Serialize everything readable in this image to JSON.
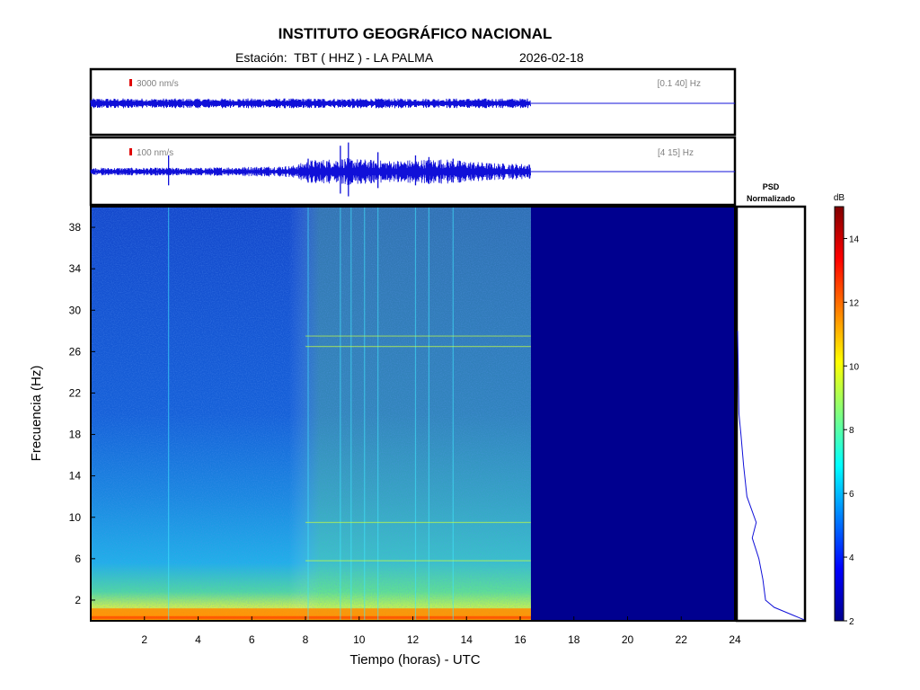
{
  "header": {
    "title": "INSTITUTO GEOGRÁFICO NACIONAL",
    "station": "Estación:  TBT ( HHZ ) - LA PALMA",
    "date": "2026-02-18"
  },
  "chart_data": [
    {
      "type": "line",
      "name": "seismogram-broadband",
      "scale_label": "3000 nm/s",
      "band_label": "[0.1 40] Hz",
      "x_range": [
        0,
        24
      ],
      "data_end_hour": 16.4,
      "amplitude_relative": 0.1
    },
    {
      "type": "line",
      "name": "seismogram-filtered",
      "scale_label": "100 nm/s",
      "band_label": "[4 15] Hz",
      "x_range": [
        0,
        24
      ],
      "data_end_hour": 16.4,
      "envelope": [
        {
          "x": 0,
          "y": 0.1
        },
        {
          "x": 4,
          "y": 0.1
        },
        {
          "x": 7.5,
          "y": 0.15
        },
        {
          "x": 8.2,
          "y": 0.3
        },
        {
          "x": 9.5,
          "y": 0.35
        },
        {
          "x": 11,
          "y": 0.28
        },
        {
          "x": 13,
          "y": 0.33
        },
        {
          "x": 15,
          "y": 0.22
        },
        {
          "x": 16.4,
          "y": 0.2
        }
      ],
      "spikes": [
        {
          "x": 2.9,
          "y": 0.5
        },
        {
          "x": 8.1,
          "y": 0.4
        },
        {
          "x": 9.3,
          "y": 0.8
        },
        {
          "x": 9.6,
          "y": 0.9
        },
        {
          "x": 10.7,
          "y": 0.6
        },
        {
          "x": 12.1,
          "y": 0.5
        },
        {
          "x": 12.6,
          "y": 0.45
        },
        {
          "x": 13.5,
          "y": 0.4
        }
      ]
    },
    {
      "type": "heatmap",
      "name": "spectrogram",
      "xlabel": "Tiempo (horas) - UTC",
      "ylabel": "Frecuencia  (Hz)",
      "xlim": [
        0,
        24
      ],
      "ylim": [
        0,
        40
      ],
      "x_ticks": [
        2,
        4,
        6,
        8,
        10,
        12,
        14,
        16,
        18,
        20,
        22,
        24
      ],
      "y_ticks": [
        2,
        6,
        10,
        14,
        18,
        22,
        26,
        30,
        34,
        38
      ],
      "data_end_hour": 16.4,
      "vertical_events_hours": [
        2.9,
        8.1,
        9.3,
        9.7,
        10.2,
        10.7,
        12.1,
        12.6,
        13.5
      ],
      "horizontal_lines_hz": [
        9.5,
        5.8,
        26.5,
        27.5
      ],
      "colorbar": {
        "label": "dB",
        "range": [
          2,
          15
        ],
        "ticks": [
          2,
          4,
          6,
          8,
          10,
          12,
          14
        ]
      }
    },
    {
      "type": "line",
      "name": "psd-normalizado",
      "title": "PSD\nNormalizado",
      "points": [
        {
          "hz": 28,
          "v": 0.0
        },
        {
          "hz": 20,
          "v": 0.02
        },
        {
          "hz": 18,
          "v": 0.05
        },
        {
          "hz": 15,
          "v": 0.09
        },
        {
          "hz": 12,
          "v": 0.14
        },
        {
          "hz": 9.5,
          "v": 0.28
        },
        {
          "hz": 8,
          "v": 0.22
        },
        {
          "hz": 6,
          "v": 0.32
        },
        {
          "hz": 4,
          "v": 0.38
        },
        {
          "hz": 2,
          "v": 0.42
        },
        {
          "hz": 1.3,
          "v": 0.55
        },
        {
          "hz": 0.9,
          "v": 0.7
        },
        {
          "hz": 0.5,
          "v": 0.85
        },
        {
          "hz": 0.1,
          "v": 1.0
        }
      ]
    }
  ]
}
